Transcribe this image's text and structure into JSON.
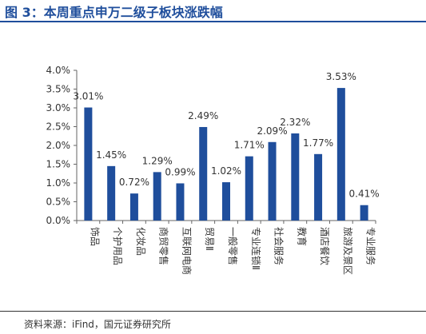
{
  "header": {
    "title": "图 3：本周重点申万二级子板块涨跌幅"
  },
  "footer": {
    "source": "资料来源：iFind，国元证券研究所"
  },
  "colors": {
    "accent": "#1f4e9c",
    "bar": "#1f4e9c"
  },
  "chart_data": {
    "type": "bar",
    "title": "",
    "xlabel": "",
    "ylabel": "",
    "categories": [
      "饰品",
      "个护用品",
      "化妆品",
      "商贸零售",
      "互联网电商",
      "贸易Ⅱ",
      "一般零售",
      "专业连锁Ⅱ",
      "社会服务",
      "教育",
      "酒店餐饮",
      "旅游及景区",
      "专业服务"
    ],
    "series": [
      {
        "values": [
          3.01,
          1.45,
          0.72,
          1.29,
          0.99,
          2.49,
          1.02,
          1.71,
          2.09,
          2.32,
          1.77,
          3.53,
          0.41
        ]
      }
    ],
    "data_labels": [
      "3.01%",
      "1.45%",
      "0.72%",
      "1.29%",
      "0.99%",
      "2.49%",
      "1.02%",
      "1.71%",
      "2.09%",
      "2.32%",
      "1.77%",
      "3.53%",
      "0.41%"
    ],
    "yticks": [
      "0.0%",
      "0.5%",
      "1.0%",
      "1.5%",
      "2.0%",
      "2.5%",
      "3.0%",
      "3.5%",
      "4.0%"
    ],
    "ylim": [
      0,
      4.0
    ],
    "grid": false,
    "legend": "none"
  }
}
